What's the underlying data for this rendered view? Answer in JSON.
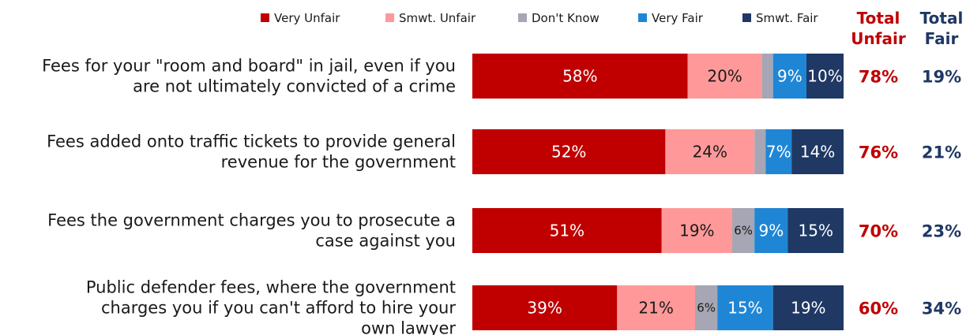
{
  "chart_data": {
    "type": "bar",
    "orientation": "horizontal",
    "stacked": true,
    "categories": [
      "Fees for your \"room and board\" in jail, even if you are not ultimately convicted of a crime",
      "Fees added onto traffic tickets to provide general revenue for the government",
      "Fees the government charges you to prosecute a case against you",
      "Public defender fees, where the government charges you if you can't afford to hire your own lawyer"
    ],
    "category_lines": [
      [
        "Fees for your \"room and board\" in jail, even if you",
        "are not ultimately convicted of a crime"
      ],
      [
        "Fees added onto traffic tickets to provide general",
        "revenue for the government"
      ],
      [
        "Fees the government charges you to prosecute a",
        "case against you"
      ],
      [
        "Public defender fees, where the government",
        "charges you if you can't afford to hire your",
        "own lawyer"
      ]
    ],
    "series": [
      {
        "name": "Very Unfair",
        "color": "#c00000",
        "text_color": "#ffffff",
        "values": [
          58,
          52,
          51,
          39
        ],
        "labels": [
          "58%",
          "52%",
          "51%",
          "39%"
        ]
      },
      {
        "name": "Smwt. Unfair",
        "color": "#ff9999",
        "text_color": "#1a1a1a",
        "values": [
          20,
          24,
          19,
          21
        ],
        "labels": [
          "20%",
          "24%",
          "19%",
          "21%"
        ]
      },
      {
        "name": "Don't Know",
        "color": "#a6a6b4",
        "text_color": "#1a1a1a",
        "values": [
          3,
          3,
          6,
          6
        ],
        "labels": [
          "",
          "",
          "6%",
          "6%"
        ]
      },
      {
        "name": "Very Fair",
        "color": "#1f86d6",
        "text_color": "#ffffff",
        "values": [
          9,
          7,
          9,
          15
        ],
        "labels": [
          "9%",
          "7%",
          "9%",
          "15%"
        ]
      },
      {
        "name": "Smwt. Fair",
        "color": "#1f3864",
        "text_color": "#ffffff",
        "values": [
          10,
          14,
          15,
          19
        ],
        "labels": [
          "10%",
          "14%",
          "15%",
          "19%"
        ]
      }
    ],
    "xlim": [
      0,
      100
    ],
    "legend_position": "top",
    "grid": false,
    "totals": {
      "unfair": {
        "header": [
          "Total",
          "Unfair"
        ],
        "values": [
          "78%",
          "76%",
          "70%",
          "60%"
        ],
        "color": "#c00000"
      },
      "fair": {
        "header": [
          "Total",
          "Fair"
        ],
        "values": [
          "19%",
          "21%",
          "23%",
          "34%"
        ],
        "color": "#1f3864"
      }
    }
  }
}
